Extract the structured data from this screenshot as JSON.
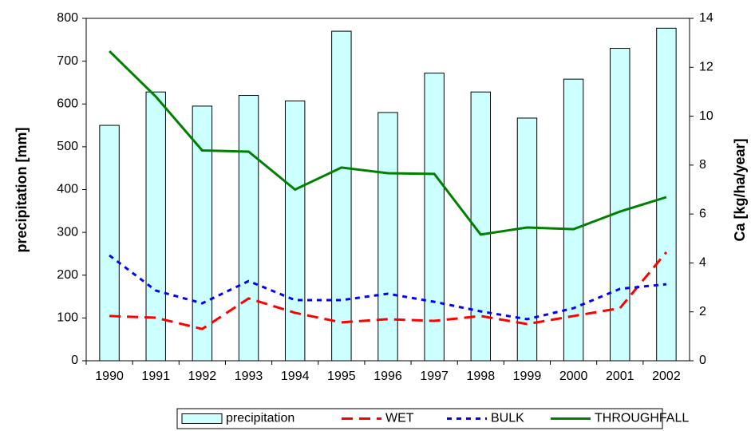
{
  "chart_data": {
    "type": "bar-line",
    "categories": [
      "1990",
      "1991",
      "1992",
      "1993",
      "1994",
      "1995",
      "1996",
      "1997",
      "1998",
      "1999",
      "2000",
      "2001",
      "2002"
    ],
    "ylabel": "precipitation [mm]",
    "y2label": "Ca [kg/ha/year]",
    "ylim": [
      0,
      800
    ],
    "yticks": [
      0,
      100,
      200,
      300,
      400,
      500,
      600,
      700,
      800
    ],
    "y2lim": [
      0,
      14
    ],
    "y2ticks": [
      0,
      2,
      4,
      6,
      8,
      10,
      12,
      14
    ],
    "legend": "bottom",
    "series": [
      {
        "name": "precipitation",
        "type": "bar",
        "color": "#ccffff",
        "values": [
          550,
          628,
          595,
          620,
          607,
          770,
          580,
          672,
          628,
          567,
          658,
          730,
          777
        ]
      },
      {
        "name": "WET",
        "type": "line",
        "axis": "y2",
        "color": "#ff0000",
        "dash": "dashed",
        "values": [
          1.83,
          1.76,
          1.3,
          2.55,
          1.96,
          1.57,
          1.7,
          1.63,
          1.83,
          1.5,
          1.83,
          2.15,
          4.44
        ]
      },
      {
        "name": "BULK",
        "type": "line",
        "axis": "y2",
        "color": "#0000ff",
        "dash": "dotted",
        "values": [
          4.31,
          2.87,
          2.35,
          3.26,
          2.48,
          2.48,
          2.74,
          2.41,
          2.02,
          1.7,
          2.15,
          2.94,
          3.13
        ]
      },
      {
        "name": "THROUGHFALL",
        "type": "line",
        "axis": "y2",
        "color": "#008000",
        "dash": "solid",
        "values": [
          12.66,
          10.8,
          8.6,
          8.55,
          7.0,
          7.9,
          7.67,
          7.64,
          5.16,
          5.45,
          5.38,
          6.1,
          6.69
        ]
      }
    ]
  }
}
